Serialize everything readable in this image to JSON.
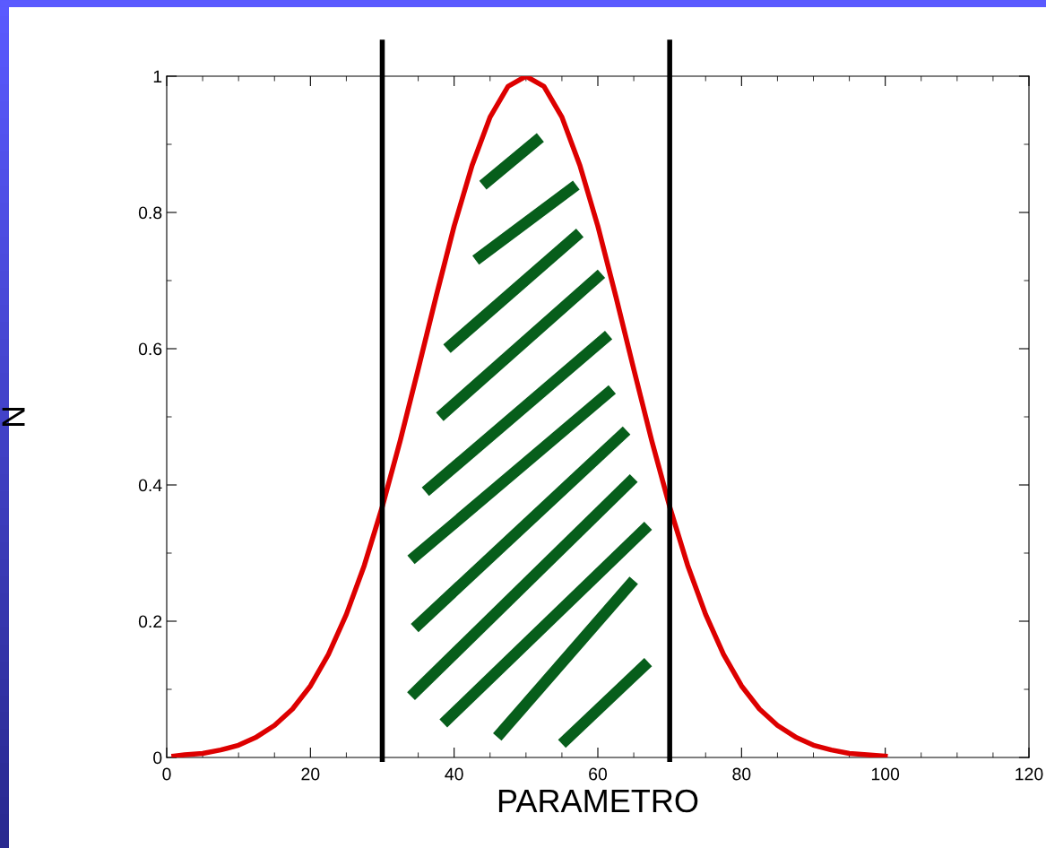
{
  "chart_data": {
    "type": "line",
    "xlabel": "PARAMETRO",
    "ylabel": "N",
    "x": [
      1,
      2.5,
      5,
      7.5,
      10,
      12.5,
      15,
      17.5,
      20,
      22.5,
      25,
      27.5,
      30,
      32.5,
      35,
      37.5,
      40,
      42.5,
      45,
      47.5,
      50,
      52.5,
      55,
      57.5,
      60,
      62.5,
      65,
      67.5,
      70,
      72.5,
      75,
      77.5,
      80,
      82.5,
      85,
      87.5,
      90,
      92.5,
      95,
      97.5,
      100
    ],
    "series": [
      {
        "color": "#dd0000",
        "values": [
          0.002,
          0.004,
          0.006,
          0.011,
          0.018,
          0.03,
          0.047,
          0.071,
          0.105,
          0.151,
          0.21,
          0.282,
          0.368,
          0.465,
          0.57,
          0.677,
          0.78,
          0.869,
          0.94,
          0.985,
          1,
          0.985,
          0.94,
          0.869,
          0.78,
          0.677,
          0.57,
          0.465,
          0.368,
          0.282,
          0.21,
          0.151,
          0.105,
          0.071,
          0.047,
          0.03,
          0.018,
          0.011,
          0.006,
          0.004,
          0.002
        ]
      }
    ],
    "xlim": [
      0,
      120
    ],
    "xticks": [
      0,
      20,
      40,
      60,
      80,
      100,
      120
    ],
    "ylim": [
      0,
      1
    ],
    "yticks": [
      0,
      0.2,
      0.4,
      0.6,
      0.8,
      1
    ],
    "ref_lines": [
      {
        "axis": "x",
        "value": 30,
        "color": "#000000"
      },
      {
        "axis": "x",
        "value": 70,
        "color": "#000000"
      }
    ],
    "grid": false,
    "legend": false,
    "marker": "none",
    "line_style": "solid"
  }
}
